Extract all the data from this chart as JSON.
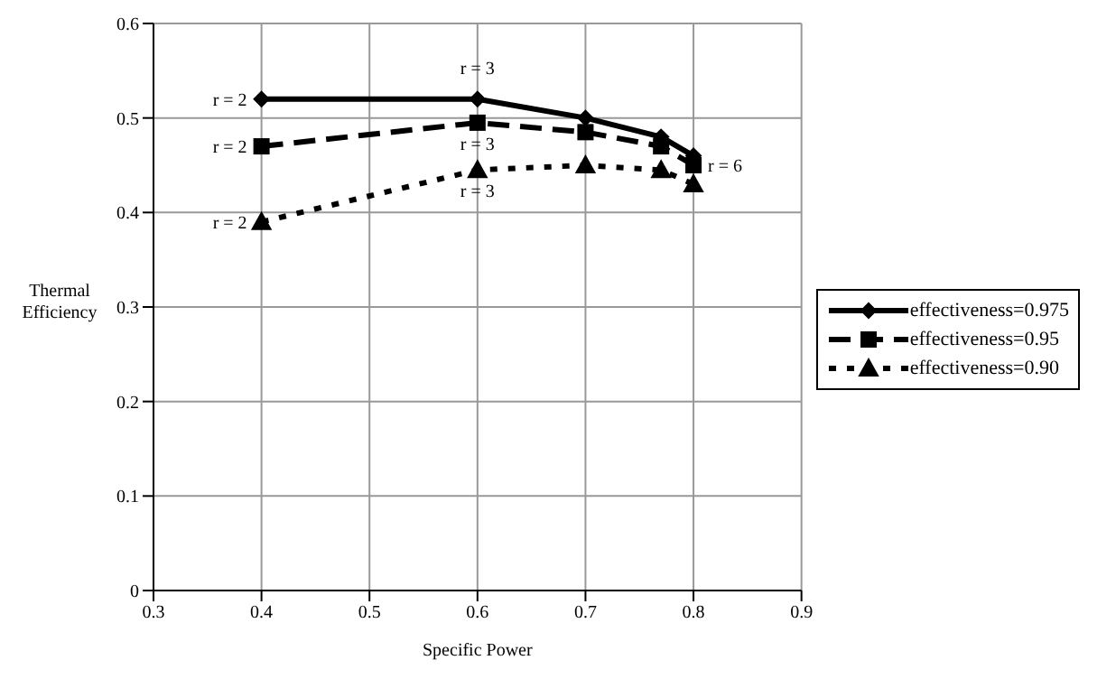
{
  "chart_data": {
    "type": "line",
    "xlabel": "Specific Power",
    "ylabel": "Thermal Efficiency",
    "x": [
      0.4,
      0.6,
      0.7,
      0.77,
      0.8
    ],
    "series": [
      {
        "name": "effectiveness=0.975",
        "color": "#000000",
        "marker": "diamond",
        "line_style": "solid",
        "values": [
          0.52,
          0.52,
          0.5,
          0.48,
          0.46
        ]
      },
      {
        "name": "effectiveness=0.95",
        "color": "#000000",
        "marker": "square",
        "line_style": "dashed",
        "values": [
          0.47,
          0.495,
          0.485,
          0.47,
          0.45
        ]
      },
      {
        "name": "effectiveness=0.90",
        "color": "#000000",
        "marker": "triangle",
        "line_style": "dotted",
        "values": [
          0.39,
          0.445,
          0.45,
          0.445,
          0.43
        ]
      }
    ],
    "xlim": [
      0.3,
      0.9
    ],
    "xticks": [
      0.3,
      0.4,
      0.5,
      0.6,
      0.7,
      0.8,
      0.9
    ],
    "ylim": [
      0,
      0.6
    ],
    "yticks": [
      0,
      0.1,
      0.2,
      0.3,
      0.4,
      0.5,
      0.6
    ],
    "grid": true,
    "legend": "right",
    "annotations": [
      {
        "text": "r = 2",
        "x": 0.4,
        "y": 0.52
      },
      {
        "text": "r = 2",
        "x": 0.4,
        "y": 0.47
      },
      {
        "text": "r = 2",
        "x": 0.4,
        "y": 0.39
      },
      {
        "text": "r = 3",
        "x": 0.6,
        "y": 0.52
      },
      {
        "text": "r = 3",
        "x": 0.6,
        "y": 0.495
      },
      {
        "text": "r = 3",
        "x": 0.6,
        "y": 0.445
      },
      {
        "text": "r = 6",
        "x": 0.8,
        "y": 0.45
      }
    ]
  }
}
